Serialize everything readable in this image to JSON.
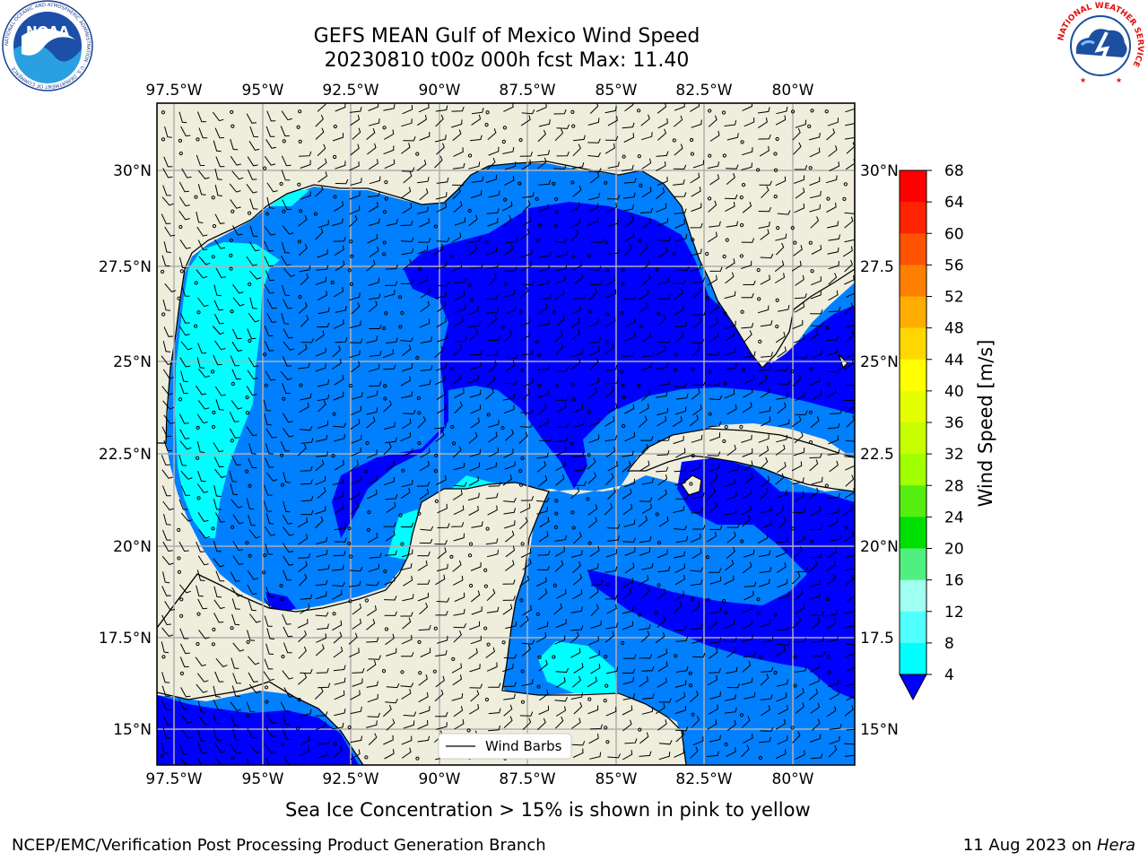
{
  "title": {
    "line1": "GEFS MEAN Gulf of Mexico Wind Speed",
    "line2": "20230810 t00z 000h fcst   Max: 11.40"
  },
  "map": {
    "lon_labels": [
      "97.5°W",
      "95°W",
      "92.5°W",
      "90°W",
      "87.5°W",
      "85°W",
      "82.5°W",
      "80°W"
    ],
    "lat_labels_left": [
      "30°N",
      "27.5°N",
      "25°N",
      "22.5°N",
      "20°N",
      "17.5°N",
      "15°N"
    ],
    "lat_labels_right": [
      "30°N",
      "27.5",
      "25°N",
      "22.5",
      "20°N",
      "17.5",
      "15°N"
    ],
    "legend_label": "Wind Barbs"
  },
  "colorbar": {
    "label": "Wind Speed [m/s]",
    "ticks": [
      "68",
      "64",
      "60",
      "56",
      "52",
      "48",
      "44",
      "40",
      "36",
      "32",
      "28",
      "24",
      "20",
      "16",
      "12",
      "8",
      "4"
    ],
    "colors": [
      "#ff0000",
      "#ff2400",
      "#ff5200",
      "#ff8000",
      "#ffad00",
      "#ffd700",
      "#ffff00",
      "#e6ff00",
      "#c8ff00",
      "#a0ff00",
      "#55ee11",
      "#00e000",
      "#50f080",
      "#a0fff0",
      "#50ffff",
      "#00ffff",
      "#0080ff",
      "#0000ff"
    ]
  },
  "captions": {
    "ice": "Sea Ice Concentration > 15% is shown in pink to yellow",
    "branch": "NCEP/EMC/Verification Post Processing Product Generation Branch",
    "date": "11 Aug 2023 on",
    "host": "Hera"
  },
  "logos": {
    "noaa_text": "NOAA",
    "noaa_ring": "NATIONAL OCEANIC AND ATMOSPHERIC ADMINISTRATION · U.S. DEPARTMENT OF COMMERCE",
    "nws_ring": "NATIONAL WEATHER SERVICE"
  }
}
